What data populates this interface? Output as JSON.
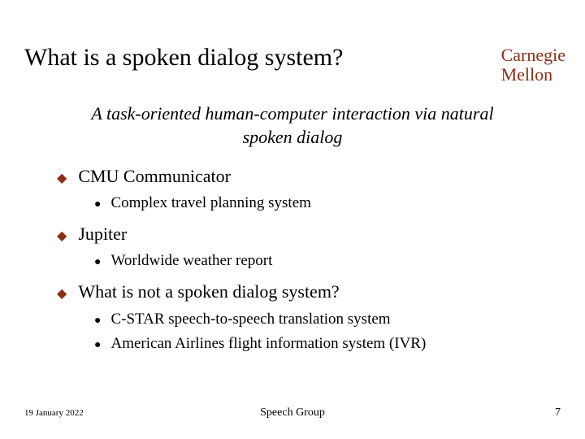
{
  "colors": {
    "brand": "#8b2f17",
    "text": "#000000",
    "background": "#ffffff"
  },
  "typography": {
    "family": "Times New Roman",
    "title_size_pt": 30,
    "brand_size_pt": 22,
    "subtitle_size_pt": 22,
    "l1_size_pt": 22,
    "l2_size_pt": 19,
    "footer_date_size_pt": 11,
    "footer_center_size_pt": 14,
    "footer_page_size_pt": 14
  },
  "title": "What is a spoken dialog system?",
  "brand": {
    "line1": "Carnegie",
    "line2": "Mellon"
  },
  "subtitle": "A task-oriented human-computer interaction via natural spoken dialog",
  "bullets": {
    "b0": {
      "label": "CMU Communicator",
      "sub0": "Complex travel planning system"
    },
    "b1": {
      "label": "Jupiter",
      "sub0": "Worldwide weather report"
    },
    "b2": {
      "label": "What is not a spoken dialog system?",
      "sub0": "C-STAR speech-to-speech translation system",
      "sub1": "American Airlines flight information system (IVR)"
    }
  },
  "footer": {
    "date": "19 January 2022",
    "center": "Speech Group",
    "page": "7"
  }
}
